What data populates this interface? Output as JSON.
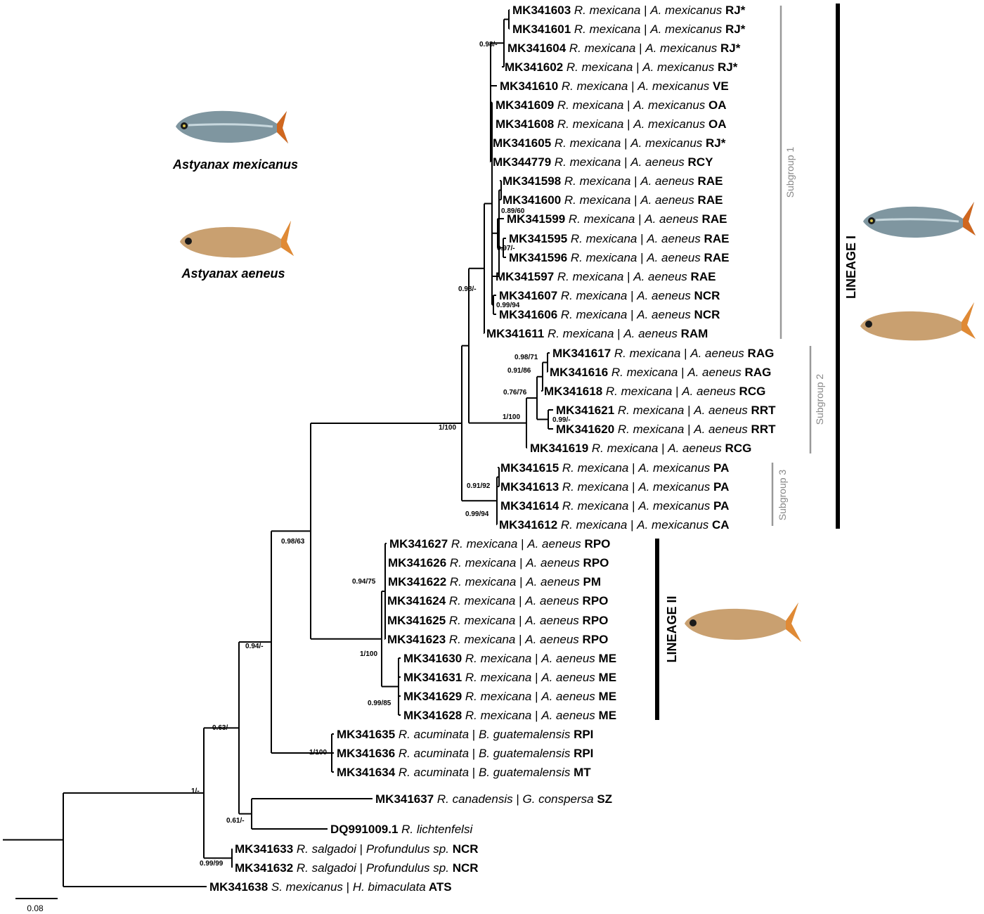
{
  "tips": [
    {
      "acc": "MK341603",
      "para": "R. mexicana",
      "host": "A. mexicanus",
      "loc": "RJ*"
    },
    {
      "acc": "MK341601",
      "para": "R. mexicana",
      "host": "A. mexicanus",
      "loc": "RJ*"
    },
    {
      "acc": "MK341604",
      "para": "R. mexicana",
      "host": "A. mexicanus",
      "loc": "RJ*"
    },
    {
      "acc": "MK341602",
      "para": "R. mexicana",
      "host": "A. mexicanus",
      "loc": "RJ*"
    },
    {
      "acc": "MK341610",
      "para": "R. mexicana",
      "host": "A. mexicanus",
      "loc": "VE"
    },
    {
      "acc": "MK341609",
      "para": "R. mexicana",
      "host": "A. mexicanus",
      "loc": "OA"
    },
    {
      "acc": "MK341608",
      "para": "R. mexicana",
      "host": "A. mexicanus",
      "loc": "OA"
    },
    {
      "acc": "MK341605",
      "para": "R. mexicana",
      "host": "A. mexicanus",
      "loc": "RJ*"
    },
    {
      "acc": "MK344779",
      "para": "R. mexicana",
      "host": "A. aeneus",
      "loc": "RCY"
    },
    {
      "acc": "MK341598",
      "para": "R. mexicana",
      "host": "A. aeneus",
      "loc": "RAE"
    },
    {
      "acc": "MK341600",
      "para": "R. mexicana",
      "host": "A. aeneus",
      "loc": "RAE"
    },
    {
      "acc": "MK341599",
      "para": "R. mexicana",
      "host": "A. aeneus",
      "loc": "RAE"
    },
    {
      "acc": "MK341595",
      "para": "R. mexicana",
      "host": "A. aeneus",
      "loc": "RAE"
    },
    {
      "acc": "MK341596",
      "para": "R. mexicana",
      "host": "A. aeneus",
      "loc": "RAE"
    },
    {
      "acc": "MK341597",
      "para": "R. mexicana",
      "host": "A. aeneus",
      "loc": "RAE"
    },
    {
      "acc": "MK341607",
      "para": "R. mexicana",
      "host": "A. aeneus",
      "loc": "NCR"
    },
    {
      "acc": "MK341606",
      "para": "R. mexicana",
      "host": "A. aeneus",
      "loc": "NCR"
    },
    {
      "acc": "MK341611",
      "para": "R. mexicana",
      "host": "A. aeneus",
      "loc": "RAM"
    },
    {
      "acc": "MK341617",
      "para": "R. mexicana",
      "host": "A. aeneus",
      "loc": "RAG"
    },
    {
      "acc": "MK341616",
      "para": "R. mexicana",
      "host": "A. aeneus",
      "loc": "RAG"
    },
    {
      "acc": "MK341618",
      "para": "R. mexicana",
      "host": "A. aeneus",
      "loc": "RCG"
    },
    {
      "acc": "MK341621",
      "para": "R. mexicana",
      "host": "A. aeneus",
      "loc": "RRT"
    },
    {
      "acc": "MK341620",
      "para": "R. mexicana",
      "host": "A. aeneus",
      "loc": "RRT"
    },
    {
      "acc": "MK341619",
      "para": "R. mexicana",
      "host": "A. aeneus",
      "loc": "RCG"
    },
    {
      "acc": "MK341615",
      "para": "R. mexicana",
      "host": "A. mexicanus",
      "loc": "PA"
    },
    {
      "acc": "MK341613",
      "para": "R. mexicana",
      "host": "A. mexicanus",
      "loc": "PA"
    },
    {
      "acc": "MK341614",
      "para": "R. mexicana",
      "host": "A. mexicanus",
      "loc": "PA"
    },
    {
      "acc": "MK341612",
      "para": "R. mexicana",
      "host": "A. mexicanus",
      "loc": "CA"
    },
    {
      "acc": "MK341627",
      "para": "R. mexicana",
      "host": "A. aeneus",
      "loc": "RPO"
    },
    {
      "acc": "MK341626",
      "para": "R. mexicana",
      "host": "A. aeneus",
      "loc": "RPO"
    },
    {
      "acc": "MK341622",
      "para": "R. mexicana",
      "host": "A. aeneus",
      "loc": "PM"
    },
    {
      "acc": "MK341624",
      "para": "R. mexicana",
      "host": "A. aeneus",
      "loc": "RPO"
    },
    {
      "acc": "MK341625",
      "para": "R. mexicana",
      "host": "A. aeneus",
      "loc": "RPO"
    },
    {
      "acc": "MK341623",
      "para": "R. mexicana",
      "host": "A. aeneus",
      "loc": "RPO"
    },
    {
      "acc": "MK341630",
      "para": "R. mexicana",
      "host": "A. aeneus",
      "loc": "ME"
    },
    {
      "acc": "MK341631",
      "para": "R. mexicana",
      "host": "A. aeneus",
      "loc": "ME"
    },
    {
      "acc": "MK341629",
      "para": "R. mexicana",
      "host": "A. aeneus",
      "loc": "ME"
    },
    {
      "acc": "MK341628",
      "para": "R. mexicana",
      "host": "A. aeneus",
      "loc": "ME"
    },
    {
      "acc": "MK341635",
      "para": "R. acuminata",
      "host": "B. guatemalensis",
      "loc": "RPI"
    },
    {
      "acc": "MK341636",
      "para": "R. acuminata",
      "host": "B. guatemalensis",
      "loc": "RPI"
    },
    {
      "acc": "MK341634",
      "para": "R. acuminata",
      "host": "B. guatemalensis",
      "loc": "MT"
    },
    {
      "acc": "MK341637",
      "para": "R. canadensis",
      "host": "G. conspersa",
      "loc": "SZ"
    },
    {
      "acc": "DQ991009.1",
      "para": "R. lichtenfelsi",
      "host": "",
      "loc": ""
    },
    {
      "acc": "MK341633",
      "para": "R. salgadoi",
      "host": "Profundulus sp.",
      "loc": "NCR"
    },
    {
      "acc": "MK341632",
      "para": "R. salgadoi",
      "host": "Profundulus sp.",
      "loc": "NCR"
    },
    {
      "acc": "MK341638",
      "para": "S. mexicanus",
      "host": "H. bimaculata",
      "loc": "ATS"
    }
  ],
  "supports": [
    "0.98/-",
    "0.89/60",
    "0.97/-",
    "0.98/-",
    "0.99/94",
    "0.98/71",
    "0.91/86",
    "0.76/76",
    "1/100",
    "0.99/-",
    "1/100",
    "0.91/92",
    "0.99/94",
    "0.98/63",
    "0.94/75",
    "1/100",
    "0.99/85",
    "0.94/-",
    "1/100",
    "0.63/-",
    "1/-",
    "0.61/-",
    "0.99/99"
  ],
  "lineages": [
    "LINEAGE I",
    "LINEAGE II"
  ],
  "subgroups": [
    "Subgroup 1",
    "Subgroup 2",
    "Subgroup 3"
  ],
  "species_labels": [
    "Astyanax mexicanus",
    "Astyanax aeneus"
  ],
  "scale_label": "0.08",
  "colors": {
    "subgroup_bar": "#999999",
    "lineage_bar": "#000000",
    "fish_silver": "#7f96a0",
    "fish_gold": "#c9a070",
    "fish_fin": "#d0671f"
  }
}
